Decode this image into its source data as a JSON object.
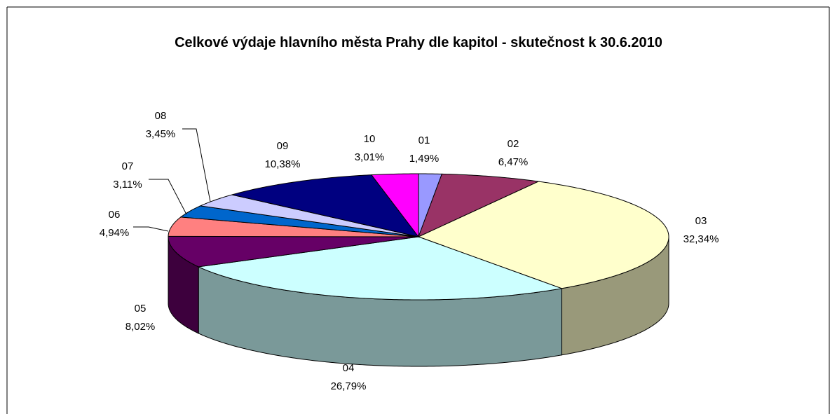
{
  "chart_data": {
    "type": "pie",
    "title": "Celkové výdaje hlavního města Prahy dle kapitol - skutečnost k 30.6.2010",
    "categories": [
      "01",
      "02",
      "03",
      "04",
      "05",
      "06",
      "07",
      "08",
      "09",
      "10"
    ],
    "values": [
      1.49,
      6.47,
      32.34,
      26.79,
      8.02,
      4.94,
      3.11,
      3.45,
      10.38,
      3.01
    ],
    "value_labels": [
      "1,49%",
      "6,47%",
      "32,34%",
      "26,79%",
      "8,02%",
      "4,94%",
      "3,11%",
      "3,45%",
      "10,38%",
      "3,01%"
    ],
    "colors": [
      "#9999ff",
      "#993366",
      "#ffffcc",
      "#ccffff",
      "#660066",
      "#ff8080",
      "#0066cc",
      "#ccccff",
      "#000080",
      "#ff00ff"
    ]
  }
}
